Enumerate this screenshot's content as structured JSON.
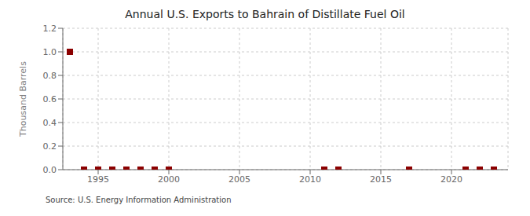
{
  "chart_data": {
    "type": "scatter",
    "title": "Annual U.S. Exports to Bahrain of Distillate Fuel Oil",
    "ylabel": "Thousand Barrels",
    "source": "Source: U.S. Energy Information Administration",
    "x": [
      1993,
      1994,
      1995,
      1996,
      1997,
      1998,
      1999,
      2000,
      2011,
      2012,
      2017,
      2021,
      2022,
      2023
    ],
    "values": [
      1.0,
      0.0,
      0.0,
      0.0,
      0.0,
      0.0,
      0.0,
      0.0,
      0.0,
      0.0,
      0.0,
      0.0,
      0.0,
      0.0
    ],
    "color": "#8b0000",
    "marker": "square",
    "xlim": [
      1992.5,
      2024
    ],
    "xticks": [
      1995,
      2000,
      2005,
      2010,
      2015,
      2020
    ],
    "ylim": [
      0.0,
      1.2
    ],
    "yticks": [
      {
        "value": 0,
        "label": "0.0"
      },
      0.2,
      0.4,
      0.6,
      0.8,
      {
        "value": 1,
        "label": "1.0"
      },
      1.2
    ],
    "grid": true
  }
}
